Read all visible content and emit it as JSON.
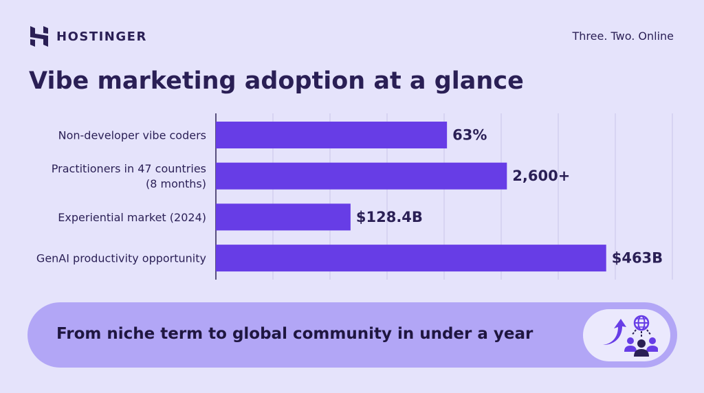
{
  "brand": {
    "name": "HOSTINGER"
  },
  "tagline": "Three. Two. Online",
  "chart_data": {
    "type": "bar",
    "orientation": "horizontal",
    "title": "Vibe marketing adoption at a glance",
    "categories": [
      "Non-developer vibe coders",
      "Practitioners in 47 countries (8 months)",
      "Experiential market (2024)",
      "GenAI productivity opportunity"
    ],
    "category_lines": [
      [
        "Non-developer vibe coders"
      ],
      [
        "Practitioners in 47 countries",
        "(8 months)"
      ],
      [
        "Experiential market (2024)"
      ],
      [
        "GenAI productivity opportunity"
      ]
    ],
    "data_labels": [
      "63%",
      "2,600+",
      "$128.4B",
      "$463B"
    ],
    "bar_extent_gridunits": [
      4.05,
      5.1,
      2.36,
      6.84
    ],
    "xlim": [
      0,
      8
    ],
    "grid": true,
    "axis_tick_labels": false,
    "bar_color": "#673de6",
    "grid_color": "#c9c6e8"
  },
  "banner": {
    "text": "From niche term to global community in under a year",
    "icon": "growth-global-community-icon",
    "color": "#b2a6f6"
  }
}
